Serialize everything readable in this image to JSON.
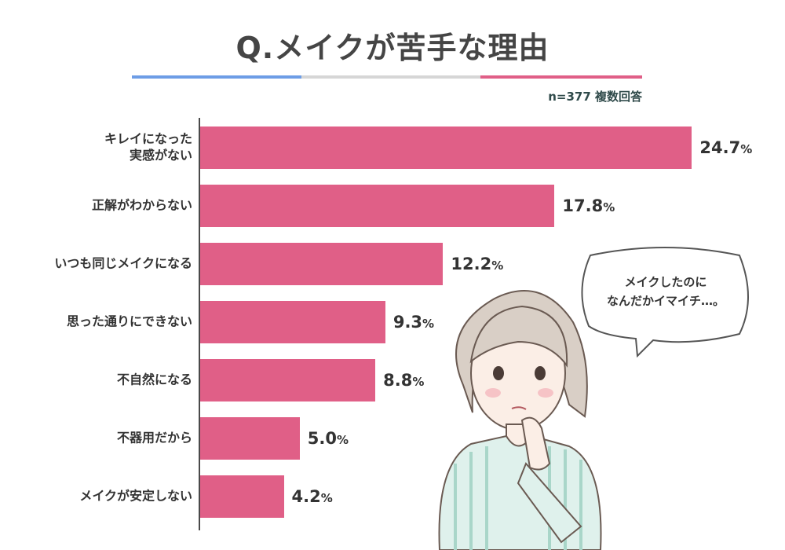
{
  "title": "Q.メイクが苦手な理由",
  "note": "n=377 複数回答",
  "colors": {
    "bar": "#e05f87",
    "rule_blue": "#6d9de6",
    "rule_gray": "#d6d6d6",
    "rule_pink": "#e05f87"
  },
  "bubble_text_line1": "メイクしたのに",
  "bubble_text_line2": "なんだかイマイチ…。",
  "chart_data": {
    "type": "bar",
    "orientation": "horizontal",
    "title": "Q.メイクが苦手な理由",
    "categories": [
      [
        "キレイになった",
        "実感がない"
      ],
      [
        "正解がわからない"
      ],
      [
        "いつも同じメイクになる"
      ],
      [
        "思った通りにできない"
      ],
      [
        "不自然になる"
      ],
      [
        "不器用だから"
      ],
      [
        "メイクが安定しない"
      ]
    ],
    "values": [
      24.7,
      17.8,
      12.2,
      9.3,
      8.8,
      5.0,
      4.2
    ],
    "value_labels": [
      "24.7",
      "17.8",
      "12.2",
      "9.3",
      "8.8",
      "5.0",
      "4.2"
    ],
    "unit": "%",
    "xlim": [
      0,
      25
    ],
    "grid": false,
    "legend": "none"
  }
}
